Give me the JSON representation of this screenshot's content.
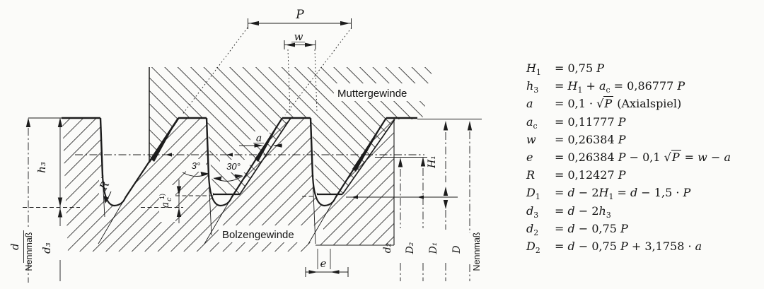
{
  "diagram": {
    "labels": {
      "pitch": "P",
      "w": "w",
      "a": "a",
      "e": "e",
      "radius": "R",
      "angle_steep": "3°",
      "angle_load": "30°",
      "nut_thread": "Muttergewinde",
      "bolt_thread": "Bolzengewinde",
      "h3": "h₃",
      "d3": "d₃",
      "d": "d",
      "nennmass_left": "Nennmaß",
      "ac_base": "a",
      "ac_sub": "c",
      "ac_footnote": "1)",
      "h1": "H₁",
      "d2": "d₂",
      "D2": "D₂",
      "D1": "D₁",
      "D": "D",
      "nennmass_right": "Nennmaß"
    }
  },
  "formulas": {
    "rows": [
      {
        "lhs": "*H*_1_",
        "rhs": "= 0,75 *P*"
      },
      {
        "lhs": "*h*_3_",
        "rhs": "= *H*_1_ + *a*_c_ = 0,86777 *P*"
      },
      {
        "lhs": "*a*",
        "rhs": "= 0,1 · §P§ (Axialspiel)"
      },
      {
        "lhs": "*a*_c_",
        "rhs": "= 0,11777 *P*"
      },
      {
        "lhs": "*w*",
        "rhs": "= 0,26384 *P*"
      },
      {
        "lhs": "*e*",
        "rhs": "= 0,26384 *P* − 0,1 §P§ = *w* − *a*"
      },
      {
        "lhs": "*R*",
        "rhs": "= 0,12427 *P*"
      },
      {
        "lhs": "*D*_1_",
        "rhs": "= *d* − 2*H*_1_ = *d* − 1,5 · *P*"
      },
      {
        "lhs": "*d*_3_",
        "rhs": "= *d* − 2*h*_3_"
      },
      {
        "lhs": "*d*_2_",
        "rhs": "= *d* − 0,75 *P*"
      },
      {
        "lhs": "*D*_2_",
        "rhs": "= *d* − 0,75 *P* + 3,1758 · *a*"
      }
    ]
  }
}
